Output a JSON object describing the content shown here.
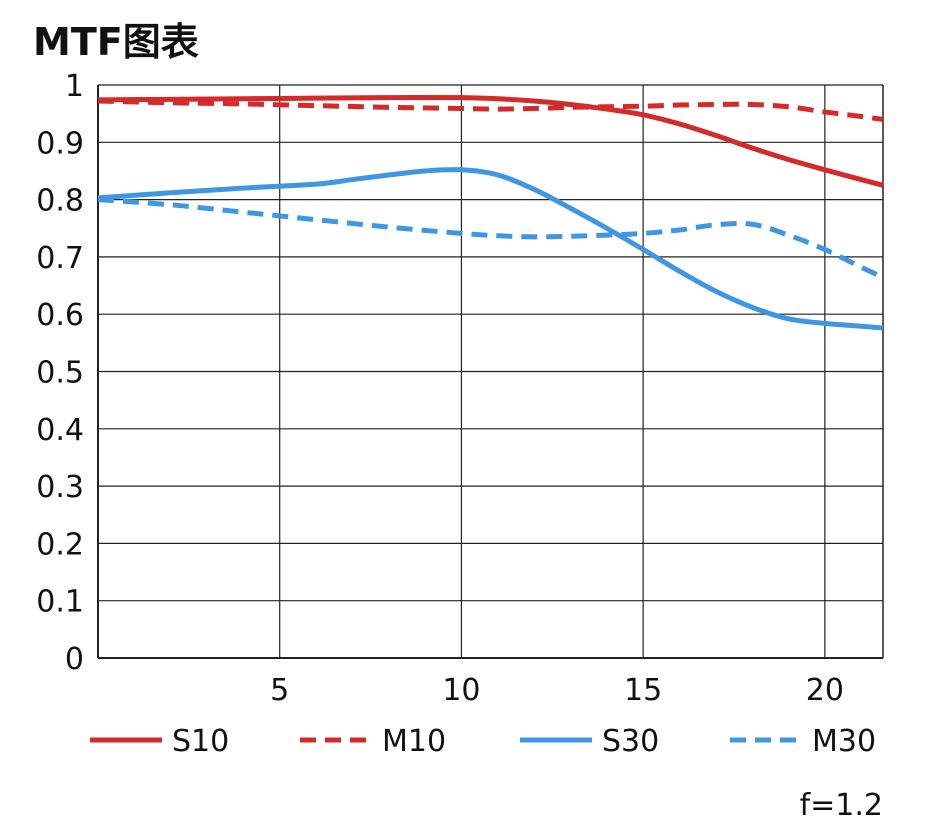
{
  "chart_data": {
    "type": "line",
    "title": "MTF图表",
    "xlabel": "",
    "ylabel": "",
    "xlim": [
      0,
      21.6
    ],
    "ylim": [
      0,
      1
    ],
    "xticks": [
      5,
      10,
      15,
      20
    ],
    "xtick_labels": [
      "5",
      "10",
      "15",
      "20"
    ],
    "yticks": [
      0,
      0.1,
      0.2,
      0.3,
      0.4,
      0.5,
      0.6,
      0.7,
      0.8,
      0.9,
      1
    ],
    "ytick_labels": [
      "0",
      "0.1",
      "0.2",
      "0.3",
      "0.4",
      "0.5",
      "0.6",
      "0.7",
      "0.8",
      "0.9",
      "1"
    ],
    "grid": true,
    "legend_position": "bottom",
    "annotation": "f=1.2",
    "series": [
      {
        "name": "S10",
        "color": "#d42a2a",
        "style": "solid",
        "x": [
          0,
          2,
          4,
          6,
          8,
          10,
          11,
          12,
          13,
          14,
          15,
          16,
          17,
          18,
          19,
          20,
          21,
          21.6
        ],
        "y": [
          0.974,
          0.975,
          0.976,
          0.977,
          0.978,
          0.978,
          0.976,
          0.972,
          0.966,
          0.958,
          0.948,
          0.932,
          0.912,
          0.89,
          0.87,
          0.852,
          0.835,
          0.825
        ]
      },
      {
        "name": "M10",
        "color": "#d42a2a",
        "style": "dashed",
        "x": [
          0,
          2,
          4,
          6,
          8,
          10,
          11,
          12,
          13,
          14,
          15,
          16,
          17,
          18,
          19,
          20,
          21,
          21.6
        ],
        "y": [
          0.972,
          0.969,
          0.967,
          0.964,
          0.961,
          0.959,
          0.958,
          0.959,
          0.961,
          0.962,
          0.963,
          0.965,
          0.966,
          0.966,
          0.962,
          0.953,
          0.945,
          0.94
        ]
      },
      {
        "name": "S30",
        "color": "#3f97e3",
        "style": "solid",
        "x": [
          0,
          2,
          4,
          6,
          7,
          8,
          9,
          10,
          11,
          12,
          13,
          14,
          15,
          16,
          17,
          18,
          19,
          20,
          21,
          21.6
        ],
        "y": [
          0.803,
          0.812,
          0.82,
          0.827,
          0.835,
          0.843,
          0.85,
          0.852,
          0.843,
          0.818,
          0.785,
          0.75,
          0.713,
          0.675,
          0.64,
          0.612,
          0.592,
          0.584,
          0.579,
          0.576
        ]
      },
      {
        "name": "M30",
        "color": "#3f97e3",
        "style": "dashed",
        "x": [
          0,
          2,
          4,
          6,
          8,
          10,
          11,
          12,
          13,
          14,
          15,
          16,
          17,
          18,
          19,
          20,
          21,
          21.6
        ],
        "y": [
          0.8,
          0.791,
          0.778,
          0.765,
          0.752,
          0.741,
          0.737,
          0.735,
          0.736,
          0.738,
          0.741,
          0.747,
          0.756,
          0.757,
          0.738,
          0.713,
          0.682,
          0.664
        ]
      }
    ]
  }
}
